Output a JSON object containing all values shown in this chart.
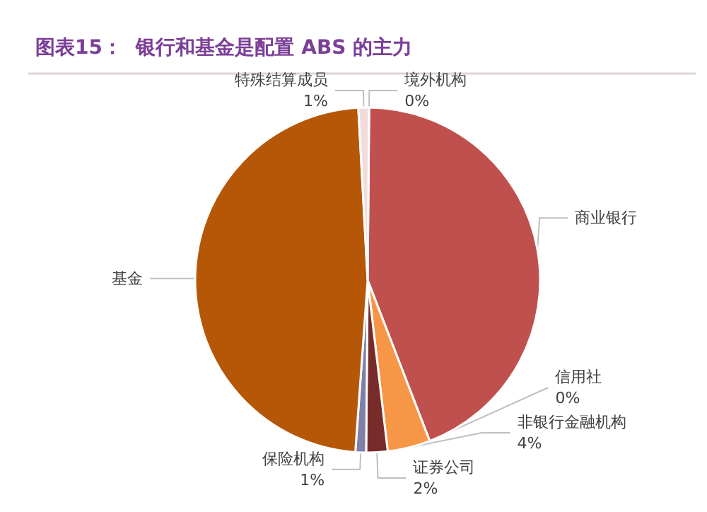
{
  "chart_data": {
    "type": "pie",
    "title": "图表15：  银行和基金是配置 ABS 的主力",
    "categories": [
      "境外机构",
      "商业银行",
      "信用社",
      "非银行金融机构",
      "证券公司",
      "保险机构",
      "基金",
      "特殊结算成员"
    ],
    "values": [
      0,
      44,
      0,
      4,
      2,
      1,
      48,
      1
    ],
    "value_labels": [
      "0%",
      null,
      "0%",
      "4%",
      "2%",
      "1%",
      null,
      "1%"
    ],
    "colors": [
      "#bfbfbf",
      "#c0504d",
      "#9bbb59",
      "#f79646",
      "#772c2a",
      "#7f7fa8",
      "#b65708",
      "#f2dcdb"
    ]
  }
}
